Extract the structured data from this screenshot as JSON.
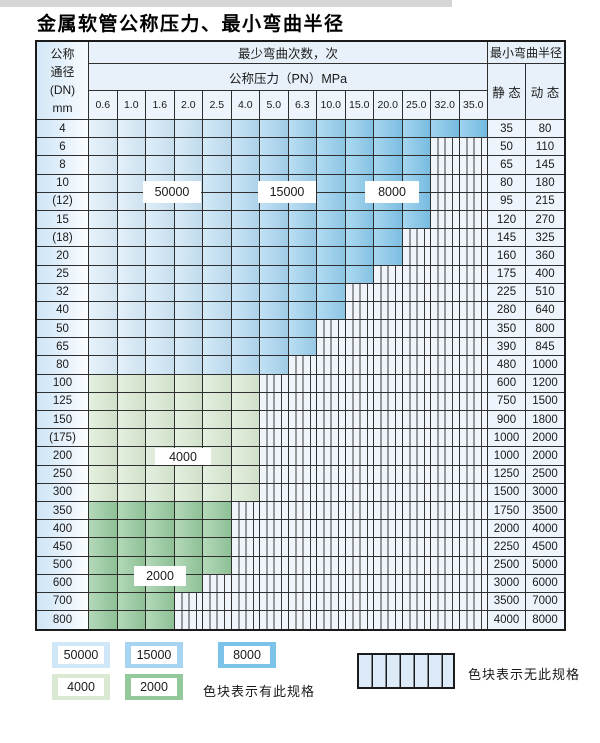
{
  "title": "金属软管公称压力、最小弯曲半径",
  "table": {
    "corner_header": "公称\n通径\n(DN)\nmm",
    "bend_cycles_header": "最少弯曲次数，次",
    "radius_header": "最小弯曲半径",
    "pressure_header": "公称压力（PN）MPa",
    "static_header": "静 态",
    "dynamic_header": "动 态",
    "pressure_columns": [
      "0.6",
      "1.0",
      "1.6",
      "2.0",
      "2.5",
      "4.0",
      "5.0",
      "6.3",
      "10.0",
      "15.0",
      "20.0",
      "25.0",
      "32.0",
      "35.0"
    ],
    "rows": [
      {
        "dn": "4",
        "spec_cols": 14,
        "region": "blue",
        "static": "35",
        "dynamic": "80"
      },
      {
        "dn": "6",
        "spec_cols": 12,
        "region": "blue",
        "static": "50",
        "dynamic": "110"
      },
      {
        "dn": "8",
        "spec_cols": 12,
        "region": "blue",
        "static": "65",
        "dynamic": "145"
      },
      {
        "dn": "10",
        "spec_cols": 12,
        "region": "blue",
        "static": "80",
        "dynamic": "180"
      },
      {
        "dn": "(12)",
        "spec_cols": 12,
        "region": "blue",
        "static": "95",
        "dynamic": "215"
      },
      {
        "dn": "15",
        "spec_cols": 12,
        "region": "blue",
        "static": "120",
        "dynamic": "270"
      },
      {
        "dn": "(18)",
        "spec_cols": 11,
        "region": "blue",
        "static": "145",
        "dynamic": "325"
      },
      {
        "dn": "20",
        "spec_cols": 11,
        "region": "blue",
        "static": "160",
        "dynamic": "360"
      },
      {
        "dn": "25",
        "spec_cols": 10,
        "region": "blue",
        "static": "175",
        "dynamic": "400"
      },
      {
        "dn": "32",
        "spec_cols": 9,
        "region": "blue",
        "static": "225",
        "dynamic": "510"
      },
      {
        "dn": "40",
        "spec_cols": 9,
        "region": "blue",
        "static": "280",
        "dynamic": "640"
      },
      {
        "dn": "50",
        "spec_cols": 8,
        "region": "blue",
        "static": "350",
        "dynamic": "800"
      },
      {
        "dn": "65",
        "spec_cols": 8,
        "region": "blue",
        "static": "390",
        "dynamic": "845"
      },
      {
        "dn": "80",
        "spec_cols": 7,
        "region": "blue",
        "static": "480",
        "dynamic": "1000"
      },
      {
        "dn": "100",
        "spec_cols": 6,
        "region": "green_light",
        "static": "600",
        "dynamic": "1200"
      },
      {
        "dn": "125",
        "spec_cols": 6,
        "region": "green_light",
        "static": "750",
        "dynamic": "1500"
      },
      {
        "dn": "150",
        "spec_cols": 6,
        "region": "green_light",
        "static": "900",
        "dynamic": "1800"
      },
      {
        "dn": "(175)",
        "spec_cols": 6,
        "region": "green_light",
        "static": "1000",
        "dynamic": "2000"
      },
      {
        "dn": "200",
        "spec_cols": 6,
        "region": "green_light",
        "static": "1000",
        "dynamic": "2000"
      },
      {
        "dn": "250",
        "spec_cols": 6,
        "region": "green_light",
        "static": "1250",
        "dynamic": "2500"
      },
      {
        "dn": "300",
        "spec_cols": 6,
        "region": "green_light",
        "static": "1500",
        "dynamic": "3000"
      },
      {
        "dn": "350",
        "spec_cols": 5,
        "region": "green_dark",
        "static": "1750",
        "dynamic": "3500"
      },
      {
        "dn": "400",
        "spec_cols": 5,
        "region": "green_dark",
        "static": "2000",
        "dynamic": "4000"
      },
      {
        "dn": "450",
        "spec_cols": 5,
        "region": "green_dark",
        "static": "2250",
        "dynamic": "4500"
      },
      {
        "dn": "500",
        "spec_cols": 5,
        "region": "green_dark",
        "static": "2500",
        "dynamic": "5000"
      },
      {
        "dn": "600",
        "spec_cols": 4,
        "region": "green_dark",
        "static": "3000",
        "dynamic": "6000"
      },
      {
        "dn": "700",
        "spec_cols": 3,
        "region": "green_dark",
        "static": "3500",
        "dynamic": "7000"
      },
      {
        "dn": "800",
        "spec_cols": 3,
        "region": "green_dark",
        "static": "4000",
        "dynamic": "8000"
      }
    ]
  },
  "overlays": {
    "b50000": "50000",
    "b15000": "15000",
    "b8000": "8000",
    "b4000": "4000",
    "b2000": "2000"
  },
  "legend": {
    "items": [
      {
        "label": "50000",
        "color": "#cfe7f7"
      },
      {
        "label": "15000",
        "color": "#a7d4f0"
      },
      {
        "label": "8000",
        "color": "#7cc3e9"
      },
      {
        "label": "4000",
        "color": "#d9e9d2"
      },
      {
        "label": "2000",
        "color": "#93c89b"
      }
    ],
    "has_spec_text": "色块表示有此规格",
    "no_spec_text": "色块表示无此规格"
  },
  "colors": {
    "blue_ramp": [
      "#dcedf9",
      "#d6eaf8",
      "#cfe7f7",
      "#c8e3f5",
      "#c0e0f4",
      "#b3daf2",
      "#a7d4f0",
      "#9cd0ee",
      "#91ccec",
      "#89c9eb",
      "#81c5ea",
      "#7cc3e9",
      "#79c1e8",
      "#77c0e8"
    ],
    "green_light": "#d9e9d2",
    "green_dark": "#93c89b",
    "hatch_fill": "#f0f5fb"
  }
}
